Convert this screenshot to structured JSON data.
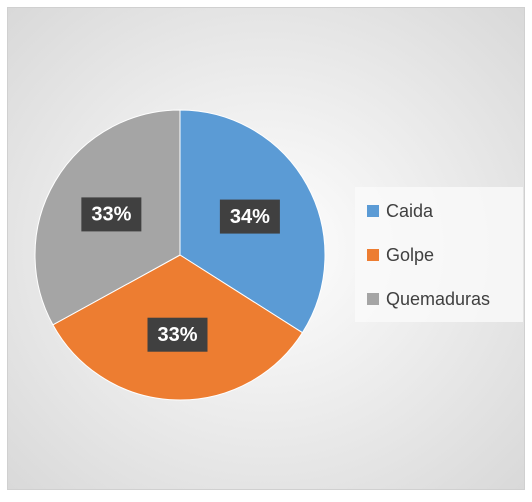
{
  "chart_data": {
    "type": "pie",
    "categories": [
      "Caida",
      "Golpe",
      "Quemaduras"
    ],
    "values": [
      34,
      33,
      33
    ],
    "value_labels": [
      "34%",
      "33%",
      "33%"
    ],
    "colors": [
      "#5b9bd5",
      "#ed7d31",
      "#a5a5a5"
    ],
    "legend": "right"
  }
}
